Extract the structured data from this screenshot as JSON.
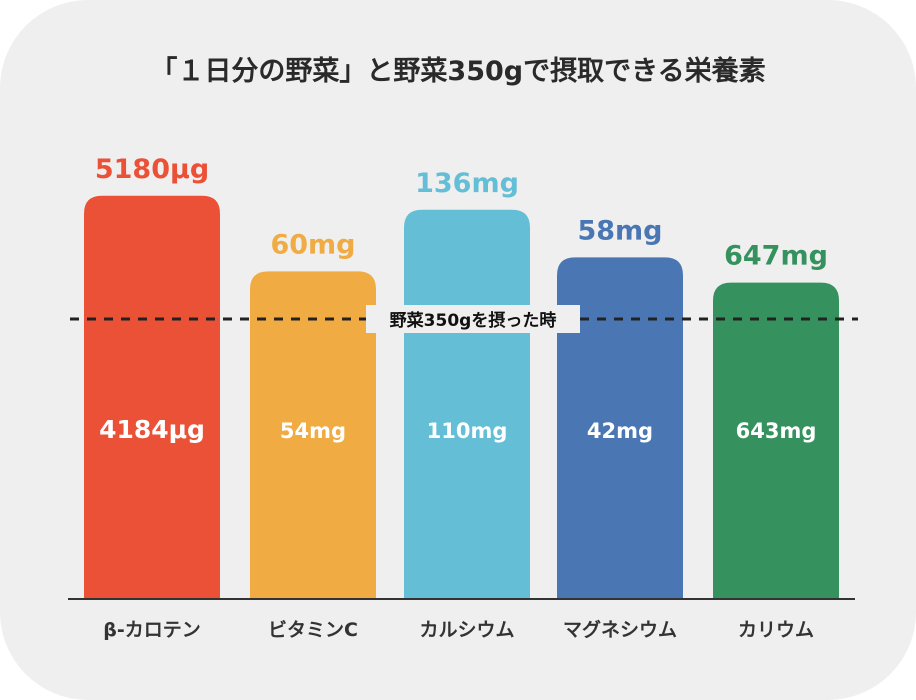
{
  "chart_data": {
    "type": "bar",
    "title": "「１日分の野菜」と野菜350gで摂取できる栄養素",
    "reference_line_label": "野菜350gを摂った時",
    "categories": [
      "β-カロテン",
      "ビタミンC",
      "カルシウム",
      "マグネシウム",
      "カリウム"
    ],
    "series": [
      {
        "values_label": [
          "5180μg",
          "60mg",
          "136mg",
          "58mg",
          "647mg"
        ],
        "values": [
          5180,
          60,
          136,
          58,
          647
        ],
        "relative_height": [
          1.44,
          1.17,
          1.39,
          1.22,
          1.13
        ]
      },
      {
        "values_label": [
          "4184μg",
          "54mg",
          "110mg",
          "42mg",
          "643mg"
        ],
        "values": [
          4184,
          54,
          110,
          42,
          643
        ],
        "relative_height": [
          1.0,
          1.0,
          1.0,
          1.0,
          1.0
        ]
      }
    ],
    "colors": [
      "#ea5137",
      "#f0ab43",
      "#63bed6",
      "#4a77b3",
      "#35925e"
    ],
    "reference_line_color": "#222222"
  }
}
